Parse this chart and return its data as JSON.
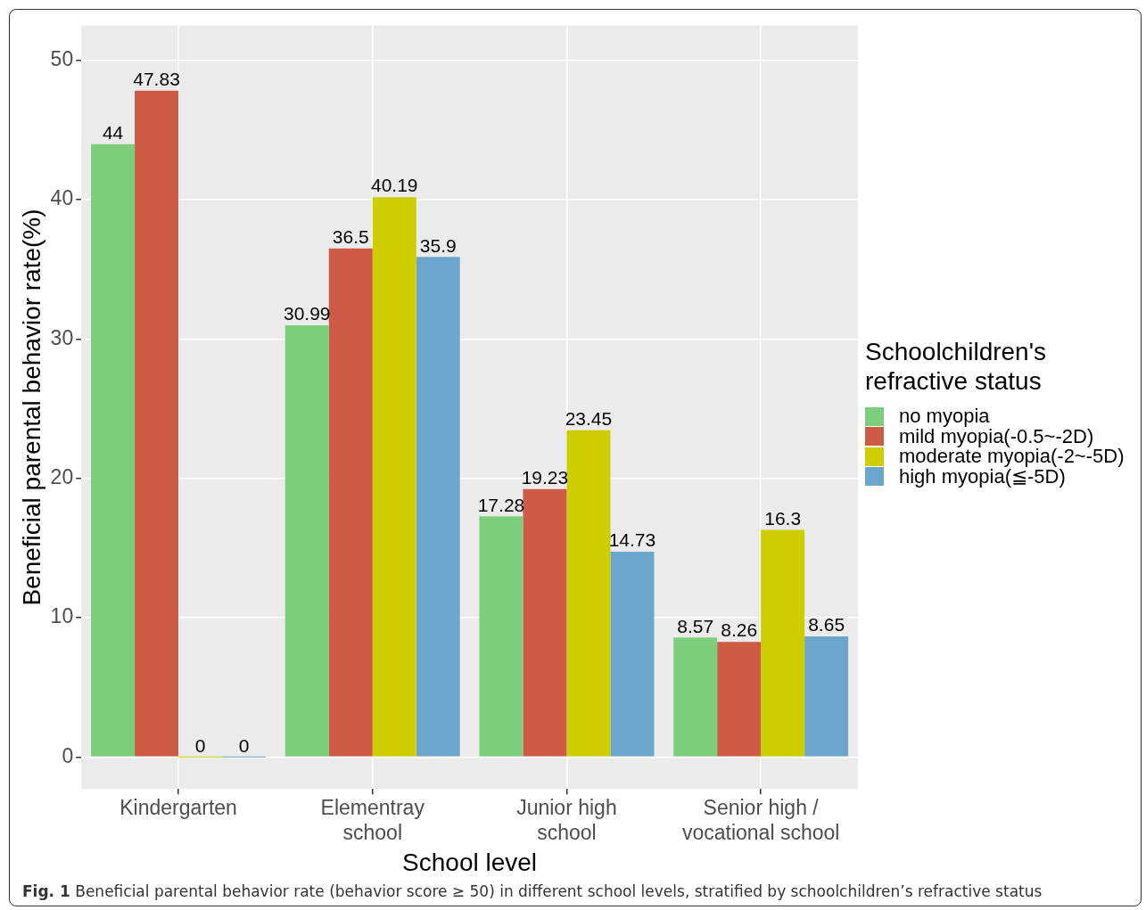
{
  "chart_data": {
    "type": "bar",
    "xlabel": "School level",
    "ylabel": "Beneficial parental behavior rate(%)",
    "legend_title": "Schoolchildren's\nrefractive status",
    "categories": [
      "Kindergarten",
      "Elementray\nschool",
      "Junior high\nschool",
      "Senior high /\nvocational school"
    ],
    "series": [
      {
        "name": "no myopia",
        "color": "#7ccd7c",
        "values": [
          44,
          30.99,
          17.28,
          8.57
        ]
      },
      {
        "name": "mild myopia(-0.5~-2D)",
        "color": "#cd5b45",
        "values": [
          47.83,
          36.5,
          19.23,
          8.26
        ]
      },
      {
        "name": "moderate myopia(-2~-5D)",
        "color": "#cdcd00",
        "values": [
          0,
          40.19,
          23.45,
          16.3
        ]
      },
      {
        "name": "high myopia(≦-5D)",
        "color": "#6ca6cd",
        "values": [
          0,
          35.9,
          14.73,
          8.65
        ]
      }
    ],
    "ylim": [
      -2.3,
      52.5
    ],
    "yticks": [
      0,
      10,
      20,
      30,
      40,
      50
    ],
    "grid": true,
    "legend": "right",
    "data_labels": true,
    "annotations": [
      "Fig. 1  Beneficial parental behavior rate (behavior score ≥ 50) in different school levels, stratified by schoolchildren’s refractive status"
    ]
  }
}
